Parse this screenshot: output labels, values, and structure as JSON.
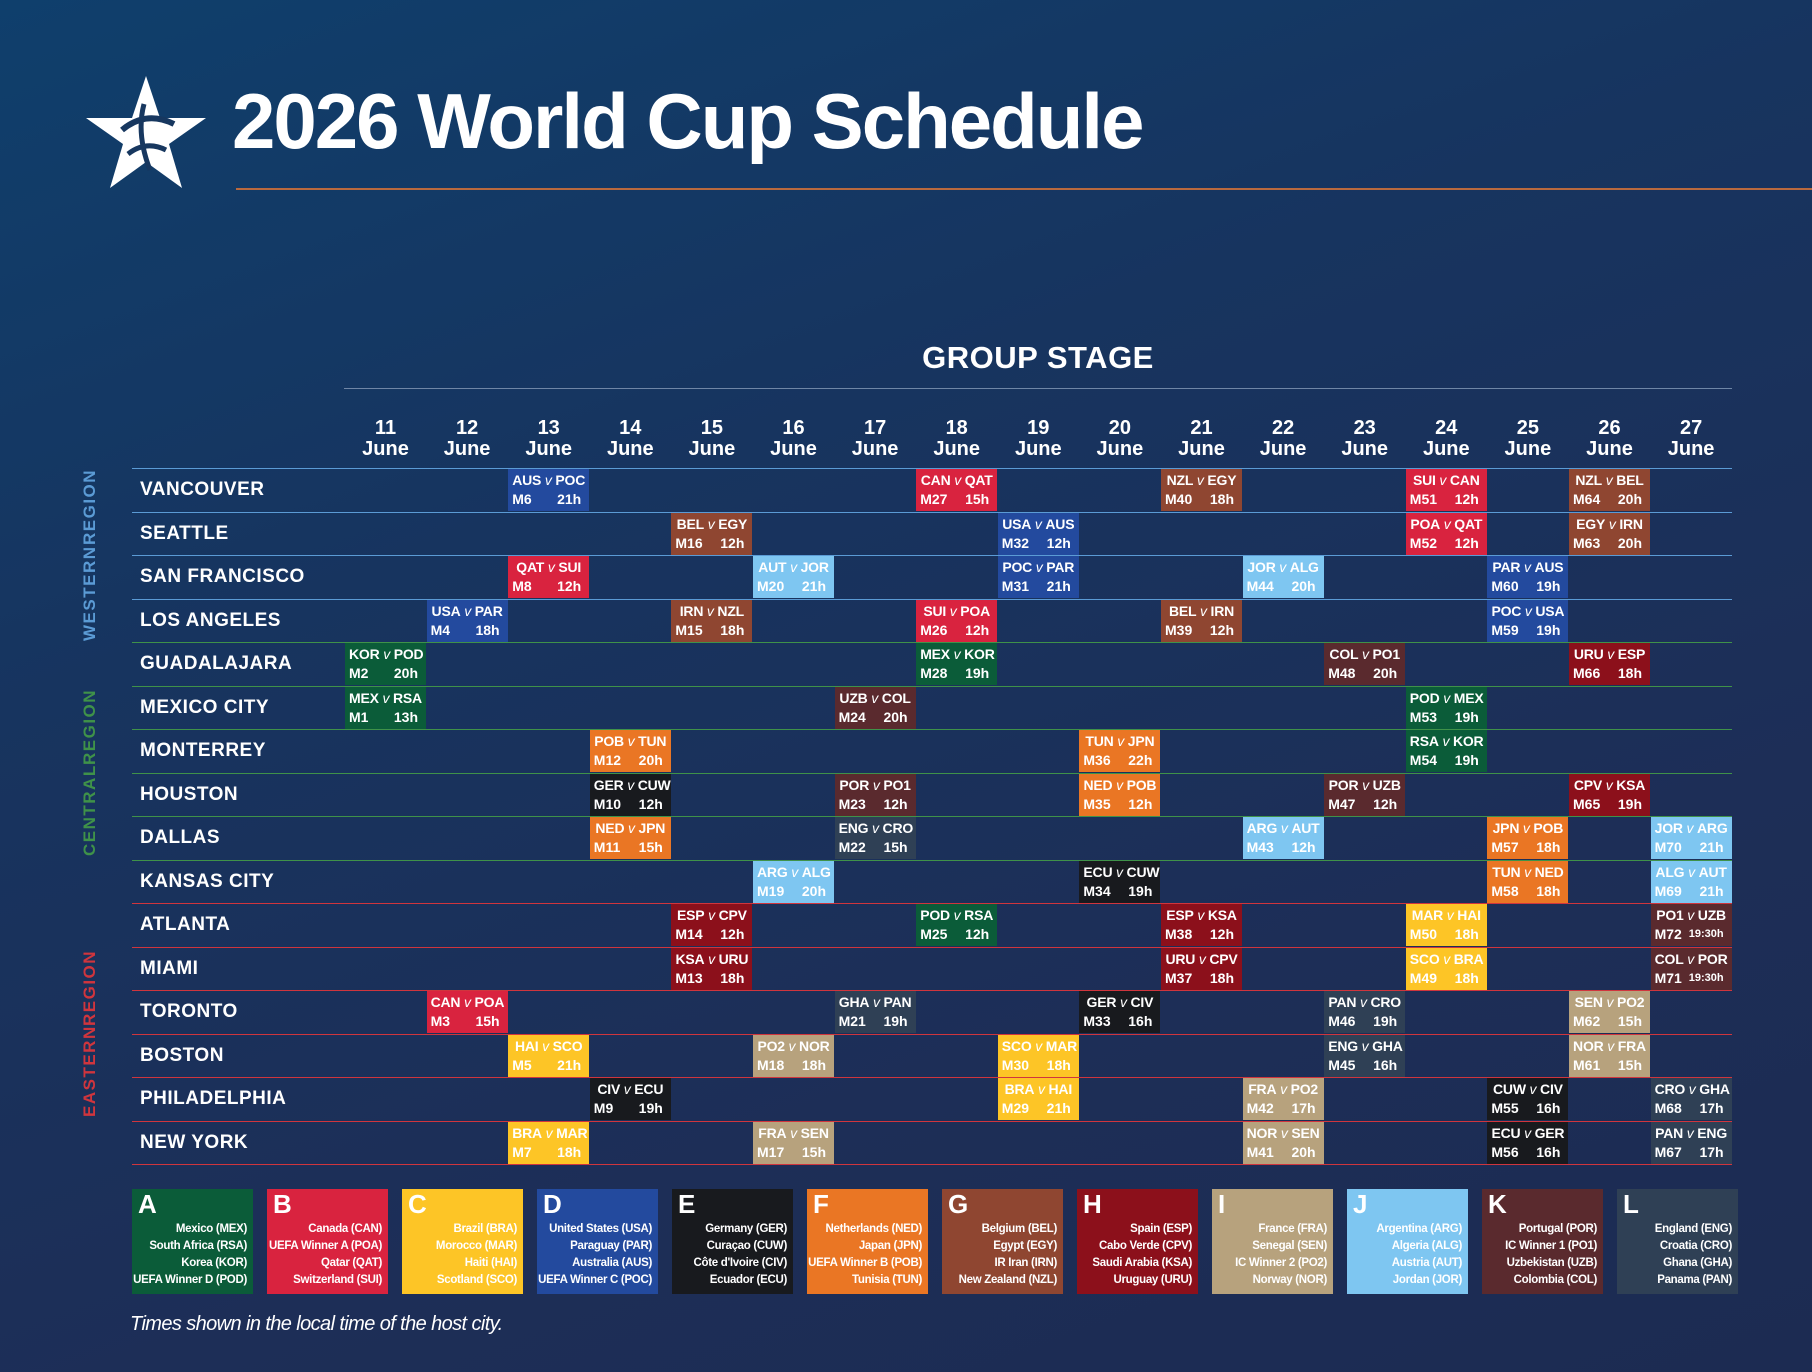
{
  "title": "2026 World Cup Schedule",
  "stage_title": "GROUP STAGE",
  "footnote": "Times shown in the local time of the host city.",
  "colors": {
    "A": "#0b5c39",
    "B": "#d9233f",
    "C": "#fdc526",
    "D": "#234a9e",
    "E": "#181a1e",
    "F": "#ea7624",
    "G": "#8f4631",
    "H": "#8c101b",
    "I": "#b7a27d",
    "J": "#7ec6f1",
    "K": "#5a2a2e",
    "L": "#2f4055",
    "western": "#5b9bd5",
    "central": "#3f9249",
    "eastern": "#d0353d"
  },
  "dates": [
    {
      "day": "11",
      "month": "June"
    },
    {
      "day": "12",
      "month": "June"
    },
    {
      "day": "13",
      "month": "June"
    },
    {
      "day": "14",
      "month": "June"
    },
    {
      "day": "15",
      "month": "June"
    },
    {
      "day": "16",
      "month": "June"
    },
    {
      "day": "17",
      "month": "June"
    },
    {
      "day": "18",
      "month": "June"
    },
    {
      "day": "19",
      "month": "June"
    },
    {
      "day": "20",
      "month": "June"
    },
    {
      "day": "21",
      "month": "June"
    },
    {
      "day": "22",
      "month": "June"
    },
    {
      "day": "23",
      "month": "June"
    },
    {
      "day": "24",
      "month": "June"
    },
    {
      "day": "25",
      "month": "June"
    },
    {
      "day": "26",
      "month": "June"
    },
    {
      "day": "27",
      "month": "June"
    }
  ],
  "regions": [
    {
      "label_top": "WESTERN",
      "label_bottom": "REGION",
      "key": "western",
      "first_city": 0,
      "city_count": 4
    },
    {
      "label_top": "CENTRAL",
      "label_bottom": "REGION",
      "key": "central",
      "first_city": 4,
      "city_count": 6
    },
    {
      "label_top": "EASTERN",
      "label_bottom": "REGION",
      "key": "eastern",
      "first_city": 10,
      "city_count": 6
    }
  ],
  "cities": [
    {
      "name": "VANCOUVER",
      "region": "western"
    },
    {
      "name": "SEATTLE",
      "region": "western"
    },
    {
      "name": "SAN FRANCISCO",
      "region": "western"
    },
    {
      "name": "LOS ANGELES",
      "region": "western"
    },
    {
      "name": "GUADALAJARA",
      "region": "central"
    },
    {
      "name": "MEXICO CITY",
      "region": "central"
    },
    {
      "name": "MONTERREY",
      "region": "central"
    },
    {
      "name": "HOUSTON",
      "region": "central"
    },
    {
      "name": "DALLAS",
      "region": "central"
    },
    {
      "name": "KANSAS CITY",
      "region": "central"
    },
    {
      "name": "ATLANTA",
      "region": "eastern"
    },
    {
      "name": "MIAMI",
      "region": "eastern"
    },
    {
      "name": "TORONTO",
      "region": "eastern"
    },
    {
      "name": "BOSTON",
      "region": "eastern"
    },
    {
      "name": "PHILADELPHIA",
      "region": "eastern"
    },
    {
      "name": "NEW YORK",
      "region": "eastern"
    }
  ],
  "matches": [
    {
      "city": 0,
      "day": 2,
      "group": "D",
      "home": "AUS",
      "away": "POC",
      "match": "M6",
      "time": "21h"
    },
    {
      "city": 0,
      "day": 7,
      "group": "B",
      "home": "CAN",
      "away": "QAT",
      "match": "M27",
      "time": "15h"
    },
    {
      "city": 0,
      "day": 10,
      "group": "G",
      "home": "NZL",
      "away": "EGY",
      "match": "M40",
      "time": "18h"
    },
    {
      "city": 0,
      "day": 13,
      "group": "B",
      "home": "SUI",
      "away": "CAN",
      "match": "M51",
      "time": "12h"
    },
    {
      "city": 0,
      "day": 15,
      "group": "G",
      "home": "NZL",
      "away": "BEL",
      "match": "M64",
      "time": "20h"
    },
    {
      "city": 1,
      "day": 4,
      "group": "G",
      "home": "BEL",
      "away": "EGY",
      "match": "M16",
      "time": "12h"
    },
    {
      "city": 1,
      "day": 8,
      "group": "D",
      "home": "USA",
      "away": "AUS",
      "match": "M32",
      "time": "12h"
    },
    {
      "city": 1,
      "day": 13,
      "group": "B",
      "home": "POA",
      "away": "QAT",
      "match": "M52",
      "time": "12h"
    },
    {
      "city": 1,
      "day": 15,
      "group": "G",
      "home": "EGY",
      "away": "IRN",
      "match": "M63",
      "time": "20h"
    },
    {
      "city": 2,
      "day": 2,
      "group": "B",
      "home": "QAT",
      "away": "SUI",
      "match": "M8",
      "time": "12h"
    },
    {
      "city": 2,
      "day": 5,
      "group": "J",
      "home": "AUT",
      "away": "JOR",
      "match": "M20",
      "time": "21h"
    },
    {
      "city": 2,
      "day": 8,
      "group": "D",
      "home": "POC",
      "away": "PAR",
      "match": "M31",
      "time": "21h"
    },
    {
      "city": 2,
      "day": 11,
      "group": "J",
      "home": "JOR",
      "away": "ALG",
      "match": "M44",
      "time": "20h"
    },
    {
      "city": 2,
      "day": 14,
      "group": "D",
      "home": "PAR",
      "away": "AUS",
      "match": "M60",
      "time": "19h"
    },
    {
      "city": 3,
      "day": 1,
      "group": "D",
      "home": "USA",
      "away": "PAR",
      "match": "M4",
      "time": "18h"
    },
    {
      "city": 3,
      "day": 4,
      "group": "G",
      "home": "IRN",
      "away": "NZL",
      "match": "M15",
      "time": "18h"
    },
    {
      "city": 3,
      "day": 7,
      "group": "B",
      "home": "SUI",
      "away": "POA",
      "match": "M26",
      "time": "12h"
    },
    {
      "city": 3,
      "day": 10,
      "group": "G",
      "home": "BEL",
      "away": "IRN",
      "match": "M39",
      "time": "12h"
    },
    {
      "city": 3,
      "day": 14,
      "group": "D",
      "home": "POC",
      "away": "USA",
      "match": "M59",
      "time": "19h"
    },
    {
      "city": 4,
      "day": 0,
      "group": "A",
      "home": "KOR",
      "away": "POD",
      "match": "M2",
      "time": "20h"
    },
    {
      "city": 4,
      "day": 7,
      "group": "A",
      "home": "MEX",
      "away": "KOR",
      "match": "M28",
      "time": "19h"
    },
    {
      "city": 4,
      "day": 12,
      "group": "K",
      "home": "COL",
      "away": "PO1",
      "match": "M48",
      "time": "20h"
    },
    {
      "city": 4,
      "day": 15,
      "group": "H",
      "home": "URU",
      "away": "ESP",
      "match": "M66",
      "time": "18h"
    },
    {
      "city": 5,
      "day": 0,
      "group": "A",
      "home": "MEX",
      "away": "RSA",
      "match": "M1",
      "time": "13h"
    },
    {
      "city": 5,
      "day": 6,
      "group": "K",
      "home": "UZB",
      "away": "COL",
      "match": "M24",
      "time": "20h"
    },
    {
      "city": 5,
      "day": 13,
      "group": "A",
      "home": "POD",
      "away": "MEX",
      "match": "M53",
      "time": "19h"
    },
    {
      "city": 6,
      "day": 3,
      "group": "F",
      "home": "POB",
      "away": "TUN",
      "match": "M12",
      "time": "20h"
    },
    {
      "city": 6,
      "day": 9,
      "group": "F",
      "home": "TUN",
      "away": "JPN",
      "match": "M36",
      "time": "22h"
    },
    {
      "city": 6,
      "day": 13,
      "group": "A",
      "home": "RSA",
      "away": "KOR",
      "match": "M54",
      "time": "19h"
    },
    {
      "city": 7,
      "day": 3,
      "group": "E",
      "home": "GER",
      "away": "CUW",
      "match": "M10",
      "time": "12h"
    },
    {
      "city": 7,
      "day": 6,
      "group": "K",
      "home": "POR",
      "away": "PO1",
      "match": "M23",
      "time": "12h"
    },
    {
      "city": 7,
      "day": 9,
      "group": "F",
      "home": "NED",
      "away": "POB",
      "match": "M35",
      "time": "12h"
    },
    {
      "city": 7,
      "day": 12,
      "group": "K",
      "home": "POR",
      "away": "UZB",
      "match": "M47",
      "time": "12h"
    },
    {
      "city": 7,
      "day": 15,
      "group": "H",
      "home": "CPV",
      "away": "KSA",
      "match": "M65",
      "time": "19h"
    },
    {
      "city": 8,
      "day": 3,
      "group": "F",
      "home": "NED",
      "away": "JPN",
      "match": "M11",
      "time": "15h"
    },
    {
      "city": 8,
      "day": 6,
      "group": "L",
      "home": "ENG",
      "away": "CRO",
      "match": "M22",
      "time": "15h"
    },
    {
      "city": 8,
      "day": 11,
      "group": "J",
      "home": "ARG",
      "away": "AUT",
      "match": "M43",
      "time": "12h"
    },
    {
      "city": 8,
      "day": 14,
      "group": "F",
      "home": "JPN",
      "away": "POB",
      "match": "M57",
      "time": "18h"
    },
    {
      "city": 8,
      "day": 16,
      "group": "J",
      "home": "JOR",
      "away": "ARG",
      "match": "M70",
      "time": "21h"
    },
    {
      "city": 9,
      "day": 5,
      "group": "J",
      "home": "ARG",
      "away": "ALG",
      "match": "M19",
      "time": "20h"
    },
    {
      "city": 9,
      "day": 9,
      "group": "E",
      "home": "ECU",
      "away": "CUW",
      "match": "M34",
      "time": "19h"
    },
    {
      "city": 9,
      "day": 14,
      "group": "F",
      "home": "TUN",
      "away": "NED",
      "match": "M58",
      "time": "18h"
    },
    {
      "city": 9,
      "day": 16,
      "group": "J",
      "home": "ALG",
      "away": "AUT",
      "match": "M69",
      "time": "21h"
    },
    {
      "city": 10,
      "day": 4,
      "group": "H",
      "home": "ESP",
      "away": "CPV",
      "match": "M14",
      "time": "12h"
    },
    {
      "city": 10,
      "day": 7,
      "group": "A",
      "home": "POD",
      "away": "RSA",
      "match": "M25",
      "time": "12h"
    },
    {
      "city": 10,
      "day": 10,
      "group": "H",
      "home": "ESP",
      "away": "KSA",
      "match": "M38",
      "time": "12h"
    },
    {
      "city": 10,
      "day": 13,
      "group": "C",
      "home": "MAR",
      "away": "HAI",
      "match": "M50",
      "time": "18h"
    },
    {
      "city": 10,
      "day": 16,
      "group": "K",
      "home": "PO1",
      "away": "UZB",
      "match": "M72",
      "time": "19:30h"
    },
    {
      "city": 11,
      "day": 4,
      "group": "H",
      "home": "KSA",
      "away": "URU",
      "match": "M13",
      "time": "18h"
    },
    {
      "city": 11,
      "day": 10,
      "group": "H",
      "home": "URU",
      "away": "CPV",
      "match": "M37",
      "time": "18h"
    },
    {
      "city": 11,
      "day": 13,
      "group": "C",
      "home": "SCO",
      "away": "BRA",
      "match": "M49",
      "time": "18h"
    },
    {
      "city": 11,
      "day": 16,
      "group": "K",
      "home": "COL",
      "away": "POR",
      "match": "M71",
      "time": "19:30h"
    },
    {
      "city": 12,
      "day": 1,
      "group": "B",
      "home": "CAN",
      "away": "POA",
      "match": "M3",
      "time": "15h"
    },
    {
      "city": 12,
      "day": 6,
      "group": "L",
      "home": "GHA",
      "away": "PAN",
      "match": "M21",
      "time": "19h"
    },
    {
      "city": 12,
      "day": 9,
      "group": "E",
      "home": "GER",
      "away": "CIV",
      "match": "M33",
      "time": "16h"
    },
    {
      "city": 12,
      "day": 12,
      "group": "L",
      "home": "PAN",
      "away": "CRO",
      "match": "M46",
      "time": "19h"
    },
    {
      "city": 12,
      "day": 15,
      "group": "I",
      "home": "SEN",
      "away": "PO2",
      "match": "M62",
      "time": "15h"
    },
    {
      "city": 13,
      "day": 2,
      "group": "C",
      "home": "HAI",
      "away": "SCO",
      "match": "M5",
      "time": "21h"
    },
    {
      "city": 13,
      "day": 5,
      "group": "I",
      "home": "PO2",
      "away": "NOR",
      "match": "M18",
      "time": "18h"
    },
    {
      "city": 13,
      "day": 8,
      "group": "C",
      "home": "SCO",
      "away": "MAR",
      "match": "M30",
      "time": "18h"
    },
    {
      "city": 13,
      "day": 12,
      "group": "L",
      "home": "ENG",
      "away": "GHA",
      "match": "M45",
      "time": "16h"
    },
    {
      "city": 13,
      "day": 15,
      "group": "I",
      "home": "NOR",
      "away": "FRA",
      "match": "M61",
      "time": "15h"
    },
    {
      "city": 14,
      "day": 3,
      "group": "E",
      "home": "CIV",
      "away": "ECU",
      "match": "M9",
      "time": "19h"
    },
    {
      "city": 14,
      "day": 8,
      "group": "C",
      "home": "BRA",
      "away": "HAI",
      "match": "M29",
      "time": "21h"
    },
    {
      "city": 14,
      "day": 11,
      "group": "I",
      "home": "FRA",
      "away": "PO2",
      "match": "M42",
      "time": "17h"
    },
    {
      "city": 14,
      "day": 14,
      "group": "E",
      "home": "CUW",
      "away": "CIV",
      "match": "M55",
      "time": "16h"
    },
    {
      "city": 14,
      "day": 16,
      "group": "L",
      "home": "CRO",
      "away": "GHA",
      "match": "M68",
      "time": "17h"
    },
    {
      "city": 15,
      "day": 2,
      "group": "C",
      "home": "BRA",
      "away": "MAR",
      "match": "M7",
      "time": "18h"
    },
    {
      "city": 15,
      "day": 5,
      "group": "I",
      "home": "FRA",
      "away": "SEN",
      "match": "M17",
      "time": "15h"
    },
    {
      "city": 15,
      "day": 11,
      "group": "I",
      "home": "NOR",
      "away": "SEN",
      "match": "M41",
      "time": "20h"
    },
    {
      "city": 15,
      "day": 14,
      "group": "E",
      "home": "ECU",
      "away": "GER",
      "match": "M56",
      "time": "16h"
    },
    {
      "city": 15,
      "day": 16,
      "group": "L",
      "home": "PAN",
      "away": "ENG",
      "match": "M67",
      "time": "17h"
    }
  ],
  "groups": [
    {
      "letter": "A",
      "teams": [
        "Mexico (MEX)",
        "South Africa (RSA)",
        "Korea (KOR)",
        "UEFA Winner D (POD)"
      ]
    },
    {
      "letter": "B",
      "teams": [
        "Canada (CAN)",
        "UEFA Winner A (POA)",
        "Qatar (QAT)",
        "Switzerland (SUI)"
      ]
    },
    {
      "letter": "C",
      "teams": [
        "Brazil (BRA)",
        "Morocco (MAR)",
        "Haiti (HAI)",
        "Scotland (SCO)"
      ]
    },
    {
      "letter": "D",
      "teams": [
        "United States (USA)",
        "Paraguay (PAR)",
        "Australia (AUS)",
        "UEFA Winner C (POC)"
      ]
    },
    {
      "letter": "E",
      "teams": [
        "Germany (GER)",
        "Curaçao (CUW)",
        "Côte d'Ivoire (CIV)",
        "Ecuador (ECU)"
      ]
    },
    {
      "letter": "F",
      "teams": [
        "Netherlands (NED)",
        "Japan (JPN)",
        "UEFA Winner B (POB)",
        "Tunisia (TUN)"
      ]
    },
    {
      "letter": "G",
      "teams": [
        "Belgium (BEL)",
        "Egypt (EGY)",
        "IR Iran (IRN)",
        "New Zealand (NZL)"
      ]
    },
    {
      "letter": "H",
      "teams": [
        "Spain (ESP)",
        "Cabo Verde (CPV)",
        "Saudi Arabia (KSA)",
        "Uruguay (URU)"
      ]
    },
    {
      "letter": "I",
      "teams": [
        "France (FRA)",
        "Senegal (SEN)",
        "IC Winner 2 (PO2)",
        "Norway (NOR)"
      ]
    },
    {
      "letter": "J",
      "teams": [
        "Argentina (ARG)",
        "Algeria (ALG)",
        "Austria (AUT)",
        "Jordan (JOR)"
      ]
    },
    {
      "letter": "K",
      "teams": [
        "Portugal (POR)",
        "IC Winner 1 (PO1)",
        "Uzbekistan (UZB)",
        "Colombia (COL)"
      ]
    },
    {
      "letter": "L",
      "teams": [
        "England (ENG)",
        "Croatia (CRO)",
        "Ghana (GHA)",
        "Panama (PAN)"
      ]
    }
  ]
}
